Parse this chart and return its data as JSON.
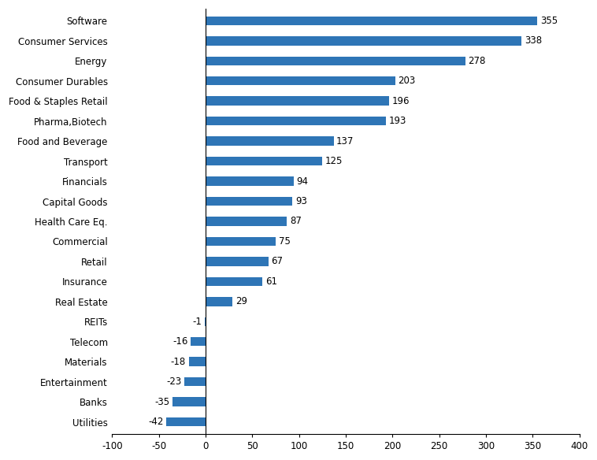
{
  "categories": [
    "Utilities",
    "Banks",
    "Entertainment",
    "Materials",
    "Telecom",
    "REITs",
    "Real Estate",
    "Insurance",
    "Retail",
    "Commercial",
    "Health Care Eq.",
    "Capital Goods",
    "Financials",
    "Transport",
    "Food and Beverage",
    "Pharma,Biotech",
    "Food & Staples Retail",
    "Consumer Durables",
    "Energy",
    "Consumer Services",
    "Software"
  ],
  "values": [
    -42,
    -35,
    -23,
    -18,
    -16,
    -1,
    29,
    61,
    67,
    75,
    87,
    93,
    94,
    125,
    137,
    193,
    196,
    203,
    278,
    338,
    355
  ],
  "bar_color": "#2e75b6",
  "xlim": [
    -100,
    400
  ],
  "xticks": [
    -100,
    -50,
    0,
    50,
    100,
    150,
    200,
    250,
    300,
    350,
    400
  ],
  "background_color": "#ffffff",
  "label_fontsize": 8.5,
  "tick_fontsize": 8.5,
  "bar_height": 0.45
}
